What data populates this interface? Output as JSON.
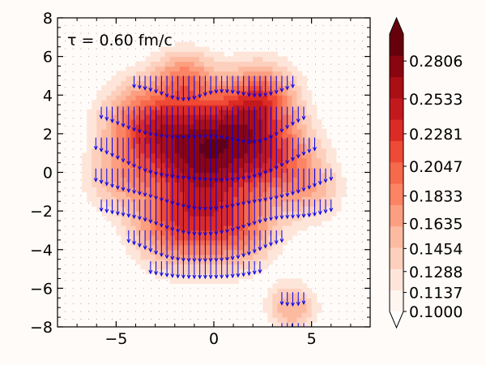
{
  "chart_data": {
    "type": "heatmap",
    "annotation": "τ = 0.60 fm/c",
    "xlim": [
      -8,
      8
    ],
    "ylim": [
      -8,
      8
    ],
    "x_ticks": [
      -5,
      0,
      5
    ],
    "x_tick_labels": [
      "−5",
      "0",
      "5"
    ],
    "y_ticks": [
      -8,
      -6,
      -4,
      -2,
      0,
      2,
      4,
      6,
      8
    ],
    "y_tick_labels": [
      "−8",
      "−6",
      "−4",
      "−2",
      "0",
      "2",
      "4",
      "6",
      "8"
    ],
    "grid": false,
    "colormap": "Reds",
    "colorbar": {
      "min": 0.1,
      "max": 0.3,
      "tick_labels": [
        "0.2806",
        "0.2533",
        "0.2281",
        "0.2047",
        "0.1833",
        "0.1635",
        "0.1454",
        "0.1288",
        "0.1137",
        "0.1000"
      ],
      "tick_values": [
        0.2806,
        0.2533,
        0.2281,
        0.2047,
        0.1833,
        0.1635,
        0.1454,
        0.1288,
        0.1137,
        0.1
      ],
      "extend": "both"
    },
    "hotspots": [
      {
        "x": -3.5,
        "y": 2.5,
        "amp": 0.09,
        "sigma": 1.6
      },
      {
        "x": -1.0,
        "y": 1.0,
        "amp": 0.12,
        "sigma": 2.0
      },
      {
        "x": 1.5,
        "y": 2.0,
        "amp": 0.1,
        "sigma": 1.8
      },
      {
        "x": 2.5,
        "y": 4.0,
        "amp": 0.07,
        "sigma": 1.2
      },
      {
        "x": -1.5,
        "y": 5.0,
        "amp": 0.06,
        "sigma": 1.0
      },
      {
        "x": 3.5,
        "y": 0.5,
        "amp": 0.06,
        "sigma": 1.4
      },
      {
        "x": -0.5,
        "y": -2.5,
        "amp": 0.08,
        "sigma": 1.8
      },
      {
        "x": -2.5,
        "y": -3.0,
        "amp": 0.05,
        "sigma": 1.3
      },
      {
        "x": 1.5,
        "y": -3.0,
        "amp": 0.05,
        "sigma": 1.3
      },
      {
        "x": -5.0,
        "y": -0.5,
        "amp": 0.04,
        "sigma": 1.2
      },
      {
        "x": 5.0,
        "y": -1.0,
        "amp": 0.04,
        "sigma": 1.2
      },
      {
        "x": 4.0,
        "y": -7.0,
        "amp": 0.06,
        "sigma": 0.9
      }
    ],
    "vector_color": "#0000ee",
    "vector_direction": "down"
  }
}
